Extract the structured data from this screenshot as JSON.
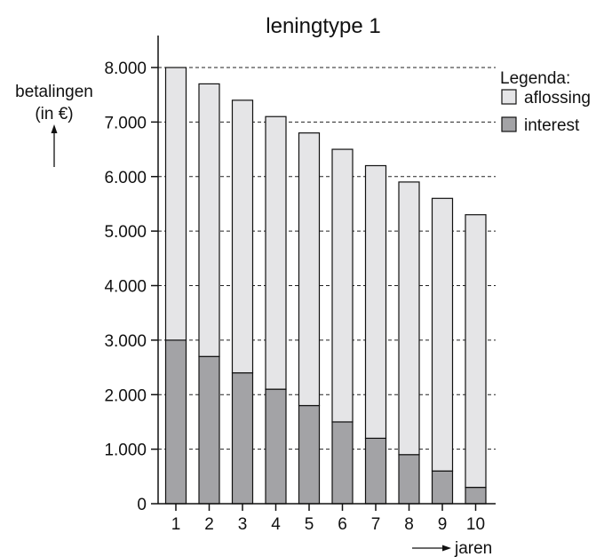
{
  "chart_data": {
    "type": "bar",
    "stacked": true,
    "title": "leningtype 1",
    "ylabel": "betalingen",
    "ylabel_unit": "(in €)",
    "xlabel": "jaren",
    "ylim": [
      0,
      8000
    ],
    "yticks": [
      "0",
      "1.000",
      "2.000",
      "3.000",
      "4.000",
      "5.000",
      "6.000",
      "7.000",
      "8.000"
    ],
    "categories": [
      "1",
      "2",
      "3",
      "4",
      "5",
      "6",
      "7",
      "8",
      "9",
      "10"
    ],
    "series": [
      {
        "name": "interest",
        "values": [
          3000,
          2700,
          2400,
          2100,
          1800,
          1500,
          1200,
          900,
          600,
          300
        ]
      },
      {
        "name": "aflossing",
        "values": [
          5000,
          5000,
          5000,
          5000,
          5000,
          5000,
          5000,
          5000,
          5000,
          5000
        ]
      }
    ],
    "colors": {
      "interest": "#a3a3a6",
      "aflossing": "#e5e5e7"
    },
    "grid": "dashed horizontal lines",
    "legend": {
      "title": "Legenda:",
      "placement": "right"
    }
  }
}
